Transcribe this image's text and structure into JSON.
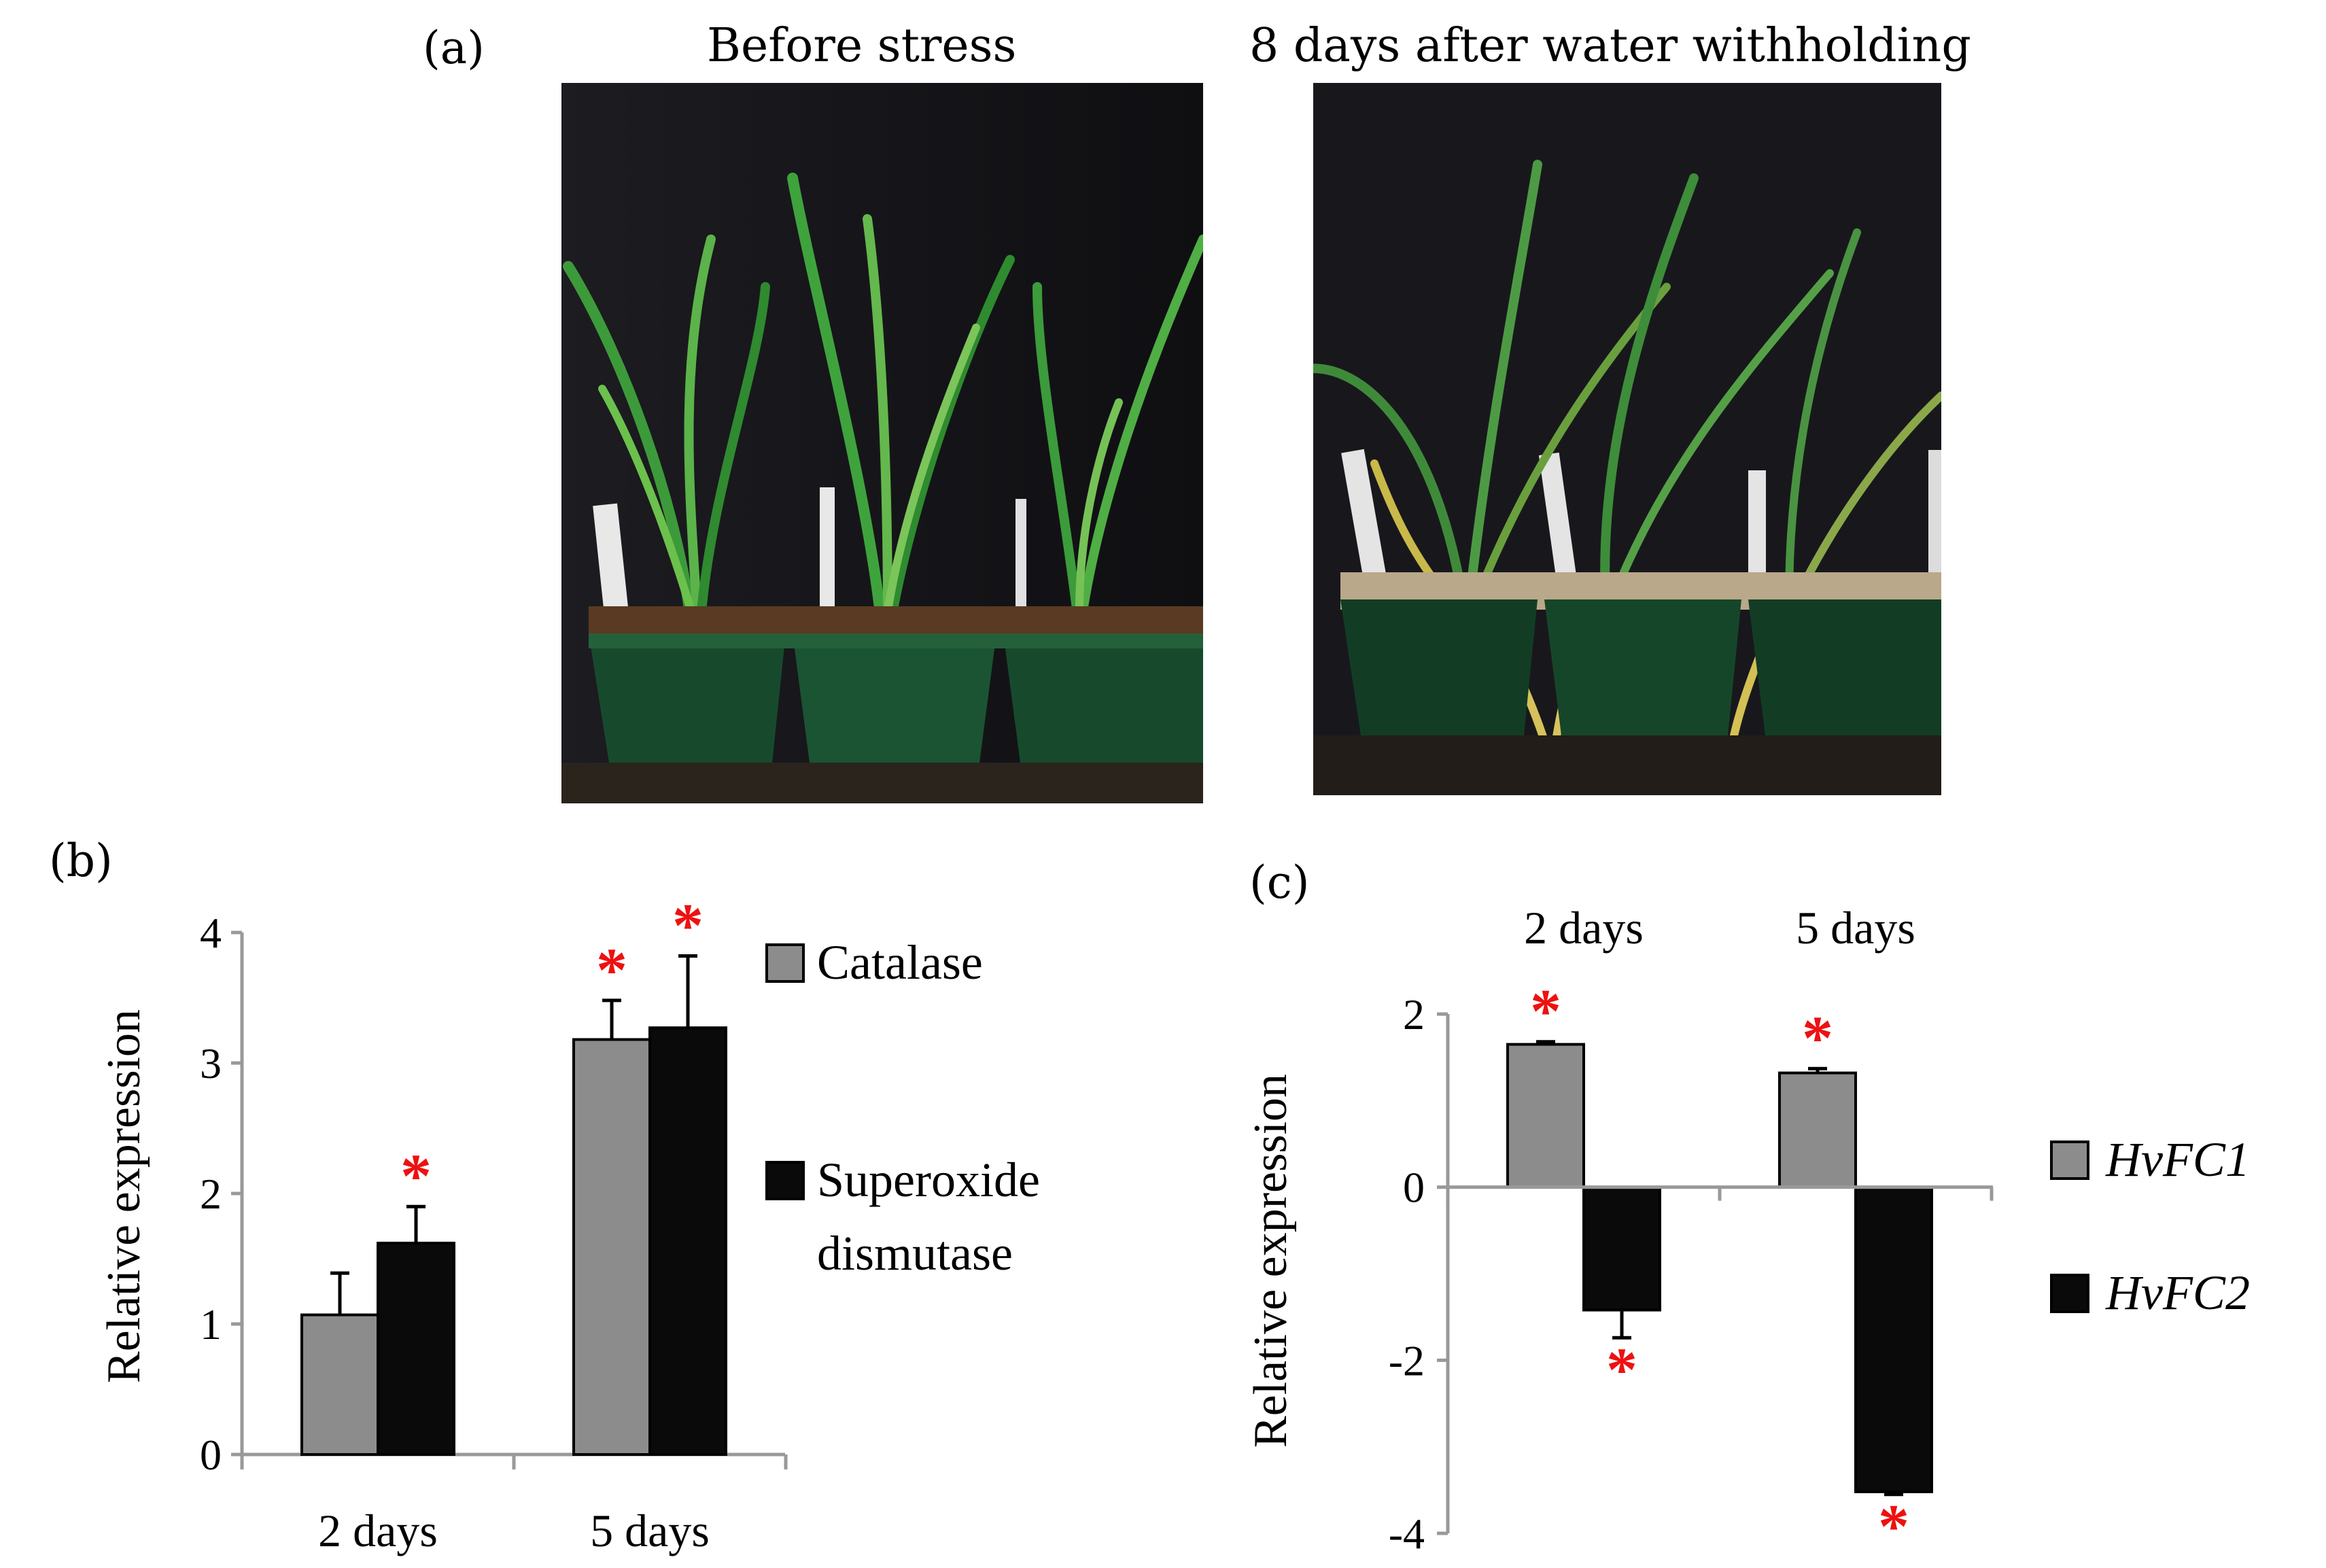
{
  "panel_a": {
    "label": "(a)",
    "left_photo_title": "Before stress",
    "right_photo_title": "8 days after water withholding",
    "left_photo_icon": "barley-seedlings-watered-photo",
    "right_photo_icon": "barley-seedlings-drought-photo"
  },
  "colors": {
    "gray": "#8c8c8c",
    "black": "#0a0a0a",
    "star": "#ee1111"
  },
  "chart_data": [
    {
      "panel": "(b)",
      "type": "bar",
      "categories": [
        "2 days",
        "5 days"
      ],
      "series": [
        {
          "name": "Catalase",
          "values": [
            1.07,
            3.18
          ],
          "errors": [
            0.32,
            0.3
          ],
          "significant": [
            false,
            true
          ]
        },
        {
          "name": "Superoxide dismutase",
          "legend_lines": [
            "Superoxide",
            "dismutase"
          ],
          "values": [
            1.62,
            3.27
          ],
          "errors": [
            0.28,
            0.55
          ],
          "significant": [
            true,
            true
          ]
        }
      ],
      "ylabel": "Relative expression",
      "ylim": [
        0,
        4
      ],
      "yticks": [
        "0",
        "1",
        "2",
        "3",
        "4"
      ],
      "significance_marker": "*",
      "legend_position": "right",
      "grid": false
    },
    {
      "panel": "(c)",
      "type": "bar",
      "categories": [
        "2 days",
        "5 days"
      ],
      "series": [
        {
          "name": "HvFC1",
          "values": [
            1.65,
            1.32
          ],
          "errors": [
            0.03,
            0.05
          ],
          "significant": [
            true,
            true
          ]
        },
        {
          "name": "HvFC2",
          "values": [
            -1.42,
            -3.52
          ],
          "errors": [
            0.32,
            0.03
          ],
          "significant": [
            true,
            true
          ]
        }
      ],
      "ylabel": "Relative expression",
      "ylim": [
        -4,
        2
      ],
      "yticks": [
        "-4",
        "-2",
        "0",
        "2"
      ],
      "significance_marker": "*",
      "legend_position": "right",
      "category_labels_position": "top",
      "grid": false
    }
  ]
}
